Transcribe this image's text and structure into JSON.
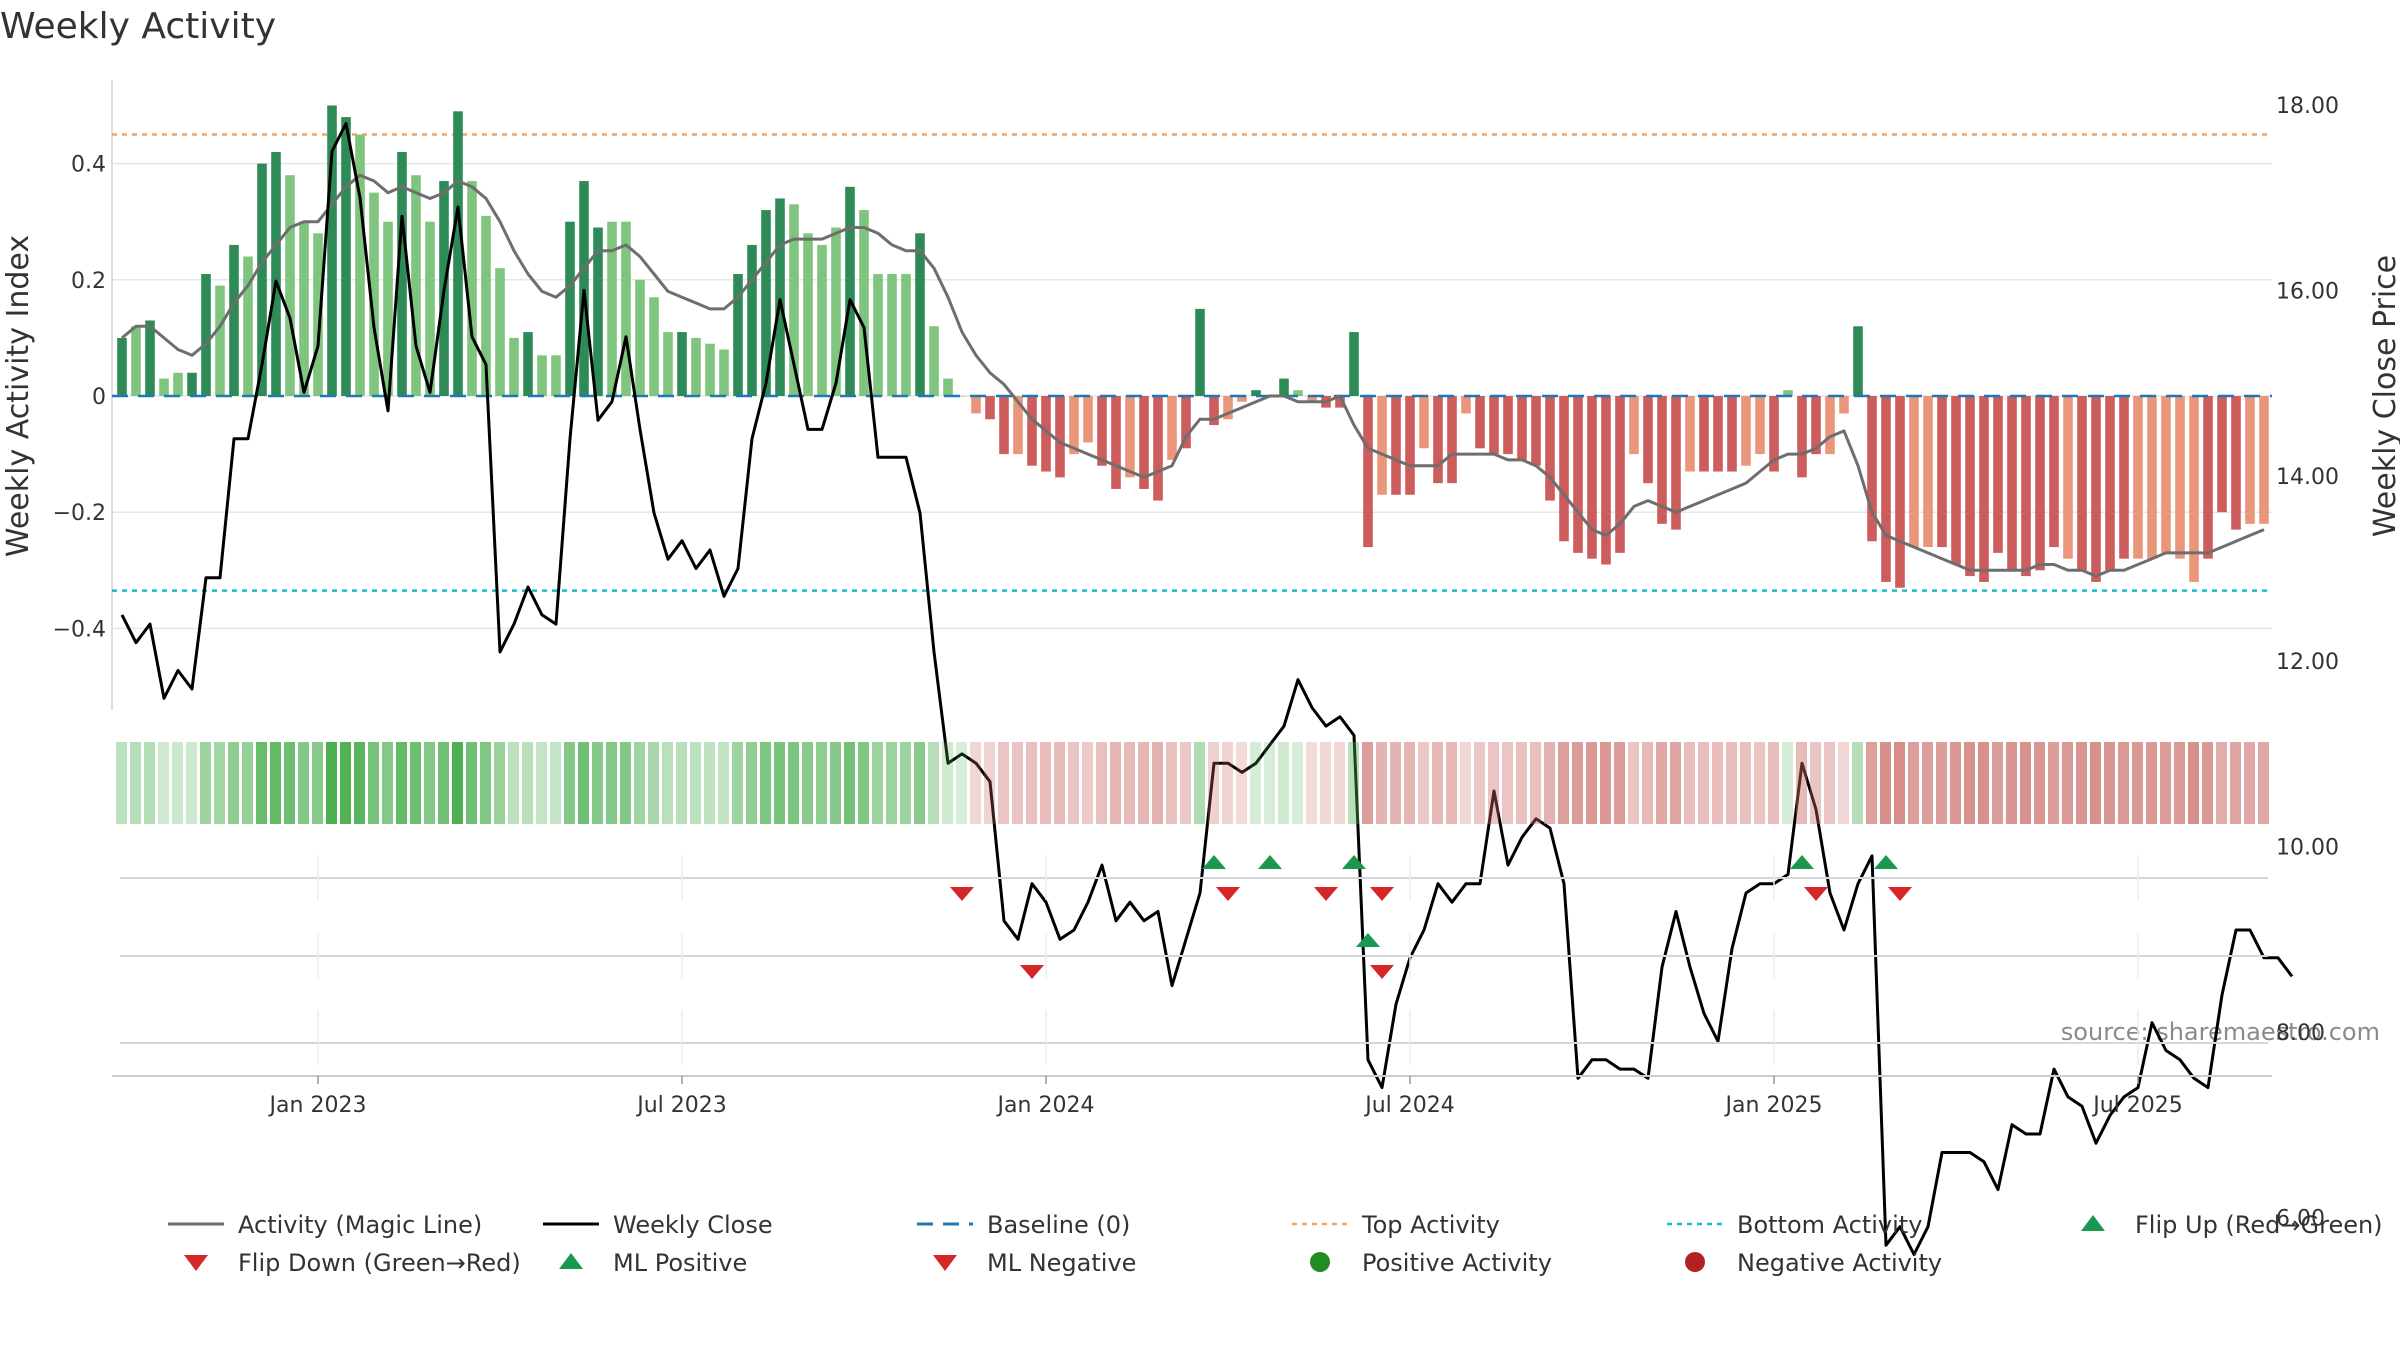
{
  "chart_data": {
    "type": "bar",
    "title": "Weekly Activity",
    "ylabel_left": "Weekly Activity Index",
    "ylabel_right": "Weekly Close Price",
    "source": "source: sharemaestro.com",
    "ylim_left": [
      -0.54,
      0.54
    ],
    "ylim_right": [
      4.9,
      18.6
    ],
    "left_ticks": [
      {
        "value": 0.4,
        "label": "0.4"
      },
      {
        "value": 0.2,
        "label": "0.2"
      },
      {
        "value": 0.0,
        "label": "0"
      },
      {
        "value": -0.2,
        "label": "−0.2"
      },
      {
        "value": -0.4,
        "label": "−0.4"
      }
    ],
    "right_ticks": [
      {
        "value": 18,
        "label": "18.00"
      },
      {
        "value": 16,
        "label": "16.00"
      },
      {
        "value": 14,
        "label": "14.00"
      },
      {
        "value": 12,
        "label": "12.00"
      },
      {
        "value": 10,
        "label": "10.00"
      },
      {
        "value": 8,
        "label": "8.00"
      },
      {
        "value": 6,
        "label": "6.00"
      }
    ],
    "x_ticks": [
      {
        "week": 14,
        "label": "Jan 2023"
      },
      {
        "week": 40,
        "label": "Jul 2023"
      },
      {
        "week": 66,
        "label": "Jan 2024"
      },
      {
        "week": 92,
        "label": "Jul 2024"
      },
      {
        "week": 118,
        "label": "Jan 2025"
      },
      {
        "week": 144,
        "label": "Jul 2025"
      }
    ],
    "top_activity": 0.45,
    "bottom_activity": -0.335,
    "baseline": 0,
    "colors": {
      "pos_dark": "#2e8b57",
      "pos_light": "#7fc47f",
      "neg_dark": "#cd5c5c",
      "neg_light": "#e9967a",
      "magic_line": "#6e6e6e",
      "close_line": "#000000",
      "baseline": "#1f77b4",
      "top": "#f4a460",
      "bottom": "#17becf",
      "flip_up": "#1a9850",
      "flip_down": "#d62728",
      "pos_marker": "#228b22",
      "neg_marker": "#b22222",
      "grid": "#e6e6e6"
    },
    "activity": [
      0.1,
      0.12,
      0.13,
      0.03,
      0.04,
      0.04,
      0.21,
      0.19,
      0.26,
      0.24,
      0.4,
      0.42,
      0.38,
      0.3,
      0.28,
      0.5,
      0.48,
      0.45,
      0.35,
      0.3,
      0.42,
      0.38,
      0.3,
      0.37,
      0.49,
      0.37,
      0.31,
      0.22,
      0.1,
      0.11,
      0.07,
      0.07,
      0.3,
      0.37,
      0.29,
      0.3,
      0.3,
      0.2,
      0.17,
      0.11,
      0.11,
      0.1,
      0.09,
      0.08,
      0.21,
      0.26,
      0.32,
      0.34,
      0.33,
      0.28,
      0.26,
      0.29,
      0.36,
      0.32,
      0.21,
      0.21,
      0.21,
      0.28,
      0.12,
      0.03,
      0.0,
      -0.03,
      -0.04,
      -0.1,
      -0.1,
      -0.12,
      -0.13,
      -0.14,
      -0.1,
      -0.08,
      -0.12,
      -0.16,
      -0.14,
      -0.16,
      -0.18,
      -0.11,
      -0.09,
      0.15,
      -0.05,
      -0.04,
      -0.01,
      0.01,
      0.0,
      0.03,
      0.01,
      -0.01,
      -0.02,
      -0.02,
      0.11,
      -0.26,
      -0.17,
      -0.17,
      -0.17,
      -0.09,
      -0.15,
      -0.15,
      -0.03,
      -0.09,
      -0.1,
      -0.1,
      -0.11,
      -0.12,
      -0.18,
      -0.25,
      -0.27,
      -0.28,
      -0.29,
      -0.27,
      -0.1,
      -0.15,
      -0.22,
      -0.23,
      -0.13,
      -0.13,
      -0.13,
      -0.13,
      -0.12,
      -0.1,
      -0.13,
      0.01,
      -0.14,
      -0.1,
      -0.1,
      -0.03,
      0.12,
      -0.25,
      -0.32,
      -0.33,
      -0.26,
      -0.26,
      -0.26,
      -0.29,
      -0.31,
      -0.32,
      -0.27,
      -0.3,
      -0.31,
      -0.3,
      -0.26,
      -0.28,
      -0.3,
      -0.32,
      -0.3,
      -0.28,
      -0.28,
      -0.28,
      -0.27,
      -0.28,
      -0.32,
      -0.28,
      -0.2,
      -0.23,
      -0.22,
      -0.22
    ],
    "dark_flags": [
      1,
      0,
      1,
      0,
      0,
      1,
      1,
      0,
      1,
      0,
      1,
      1,
      0,
      0,
      0,
      1,
      1,
      0,
      0,
      0,
      1,
      0,
      0,
      1,
      1,
      0,
      0,
      0,
      0,
      1,
      0,
      0,
      1,
      1,
      1,
      0,
      0,
      0,
      0,
      0,
      1,
      0,
      0,
      0,
      1,
      1,
      1,
      1,
      0,
      0,
      0,
      0,
      1,
      0,
      0,
      0,
      0,
      1,
      0,
      0,
      0,
      0,
      1,
      1,
      0,
      1,
      1,
      1,
      0,
      0,
      1,
      1,
      0,
      1,
      1,
      0,
      1,
      1,
      1,
      0,
      0,
      1,
      0,
      1,
      0,
      0,
      1,
      1,
      1,
      1,
      0,
      1,
      1,
      0,
      1,
      1,
      0,
      1,
      1,
      1,
      1,
      1,
      1,
      1,
      1,
      1,
      1,
      1,
      0,
      1,
      1,
      1,
      0,
      1,
      1,
      1,
      0,
      0,
      1,
      0,
      1,
      1,
      0,
      0,
      1,
      1,
      1,
      1,
      0,
      0,
      1,
      1,
      1,
      1,
      1,
      1,
      1,
      1,
      1,
      0,
      1,
      1,
      1,
      1,
      0,
      0,
      0,
      0,
      0,
      1,
      1,
      1,
      0,
      0,
      1,
      0
    ],
    "magic_line": [
      0.1,
      0.12,
      0.12,
      0.1,
      0.08,
      0.07,
      0.09,
      0.12,
      0.16,
      0.19,
      0.23,
      0.26,
      0.29,
      0.3,
      0.3,
      0.33,
      0.36,
      0.38,
      0.37,
      0.35,
      0.36,
      0.35,
      0.34,
      0.35,
      0.37,
      0.36,
      0.34,
      0.3,
      0.25,
      0.21,
      0.18,
      0.17,
      0.19,
      0.22,
      0.25,
      0.25,
      0.26,
      0.24,
      0.21,
      0.18,
      0.17,
      0.16,
      0.15,
      0.15,
      0.17,
      0.2,
      0.23,
      0.26,
      0.27,
      0.27,
      0.27,
      0.28,
      0.29,
      0.29,
      0.28,
      0.26,
      0.25,
      0.25,
      0.22,
      0.17,
      0.11,
      0.07,
      0.04,
      0.02,
      -0.01,
      -0.04,
      -0.06,
      -0.08,
      -0.09,
      -0.1,
      -0.11,
      -0.12,
      -0.13,
      -0.14,
      -0.13,
      -0.12,
      -0.07,
      -0.04,
      -0.04,
      -0.03,
      -0.02,
      -0.01,
      0.0,
      0.0,
      -0.01,
      -0.01,
      -0.01,
      0.0,
      -0.05,
      -0.09,
      -0.1,
      -0.11,
      -0.12,
      -0.12,
      -0.12,
      -0.1,
      -0.1,
      -0.1,
      -0.1,
      -0.11,
      -0.11,
      -0.12,
      -0.14,
      -0.17,
      -0.2,
      -0.23,
      -0.24,
      -0.22,
      -0.19,
      -0.18,
      -0.19,
      -0.2,
      -0.19,
      -0.18,
      -0.17,
      -0.16,
      -0.15,
      -0.13,
      -0.11,
      -0.1,
      -0.1,
      -0.09,
      -0.07,
      -0.06,
      -0.12,
      -0.2,
      -0.24,
      -0.25,
      -0.26,
      -0.27,
      -0.28,
      -0.29,
      -0.3,
      -0.3,
      -0.3,
      -0.3,
      -0.3,
      -0.29,
      -0.29,
      -0.3,
      -0.3,
      -0.31,
      -0.3,
      -0.3,
      -0.29,
      -0.28,
      -0.27,
      -0.27,
      -0.27,
      -0.27,
      -0.26,
      -0.25,
      -0.24,
      -0.23
    ],
    "weekly_close": [
      12.5,
      12.2,
      12.4,
      11.6,
      11.9,
      11.7,
      12.9,
      12.9,
      14.4,
      14.4,
      15.2,
      16.1,
      15.7,
      14.9,
      15.4,
      17.5,
      17.8,
      17.0,
      15.6,
      14.7,
      16.8,
      15.4,
      14.9,
      16.0,
      16.9,
      15.5,
      15.2,
      12.1,
      12.4,
      12.8,
      12.5,
      12.4,
      14.4,
      16.0,
      14.6,
      14.8,
      15.5,
      14.5,
      13.6,
      13.1,
      13.3,
      13.0,
      13.2,
      12.7,
      13.0,
      14.4,
      15.0,
      15.9,
      15.2,
      14.5,
      14.5,
      15.0,
      15.9,
      15.6,
      14.2,
      14.2,
      14.2,
      13.6,
      12.1,
      10.9,
      11.0,
      10.9,
      10.7,
      9.2,
      9.0,
      9.6,
      9.4,
      9.0,
      9.1,
      9.4,
      9.8,
      9.2,
      9.4,
      9.2,
      9.3,
      8.5,
      9.0,
      9.5,
      10.9,
      10.9,
      10.8,
      10.9,
      11.1,
      11.3,
      11.8,
      11.5,
      11.3,
      11.4,
      11.2,
      7.7,
      7.4,
      8.3,
      8.8,
      9.1,
      9.6,
      9.4,
      9.6,
      9.6,
      10.6,
      9.8,
      10.1,
      10.3,
      10.2,
      9.6,
      7.5,
      7.7,
      7.7,
      7.6,
      7.6,
      7.5,
      8.7,
      9.3,
      8.7,
      8.2,
      7.9,
      8.9,
      9.5,
      9.6,
      9.6,
      9.7,
      10.9,
      10.4,
      9.5,
      9.1,
      9.6,
      9.9,
      5.7,
      5.9,
      5.6,
      5.9,
      6.7,
      6.7,
      6.7,
      6.6,
      6.3,
      7.0,
      6.9,
      6.9,
      7.6,
      7.3,
      7.2,
      6.8,
      7.1,
      7.3,
      7.4,
      8.1,
      7.8,
      7.7,
      7.5,
      7.4,
      8.4,
      9.1,
      9.1,
      8.8,
      8.8,
      8.6
    ],
    "flip_markers": [
      {
        "week": 60,
        "dir": "down"
      },
      {
        "week": 78,
        "dir": "up"
      },
      {
        "week": 79,
        "dir": "down"
      },
      {
        "week": 82,
        "dir": "up"
      },
      {
        "week": 86,
        "dir": "down"
      },
      {
        "week": 88,
        "dir": "up"
      },
      {
        "week": 90,
        "dir": "down"
      },
      {
        "week": 120,
        "dir": "up"
      },
      {
        "week": 121,
        "dir": "down"
      },
      {
        "week": 126,
        "dir": "up"
      },
      {
        "week": 127,
        "dir": "down"
      }
    ],
    "ml_markers": [
      {
        "week": 65,
        "dir": "down"
      },
      {
        "week": 89,
        "dir": "up"
      },
      {
        "week": 90,
        "dir": "down"
      }
    ],
    "legend": [
      {
        "key": "magic",
        "label": "Activity (Magic Line)"
      },
      {
        "key": "close",
        "label": "Weekly Close"
      },
      {
        "key": "baseline",
        "label": "Baseline (0)"
      },
      {
        "key": "top",
        "label": "Top Activity"
      },
      {
        "key": "bottom",
        "label": "Bottom Activity"
      },
      {
        "key": "flipup",
        "label": "Flip Up (Red→Green)"
      },
      {
        "key": "flipdown",
        "label": "Flip Down (Green→Red)"
      },
      {
        "key": "mlpos",
        "label": "ML Positive"
      },
      {
        "key": "mlneg",
        "label": "ML Negative"
      },
      {
        "key": "posact",
        "label": "Positive Activity"
      },
      {
        "key": "negact",
        "label": "Negative Activity"
      }
    ]
  }
}
